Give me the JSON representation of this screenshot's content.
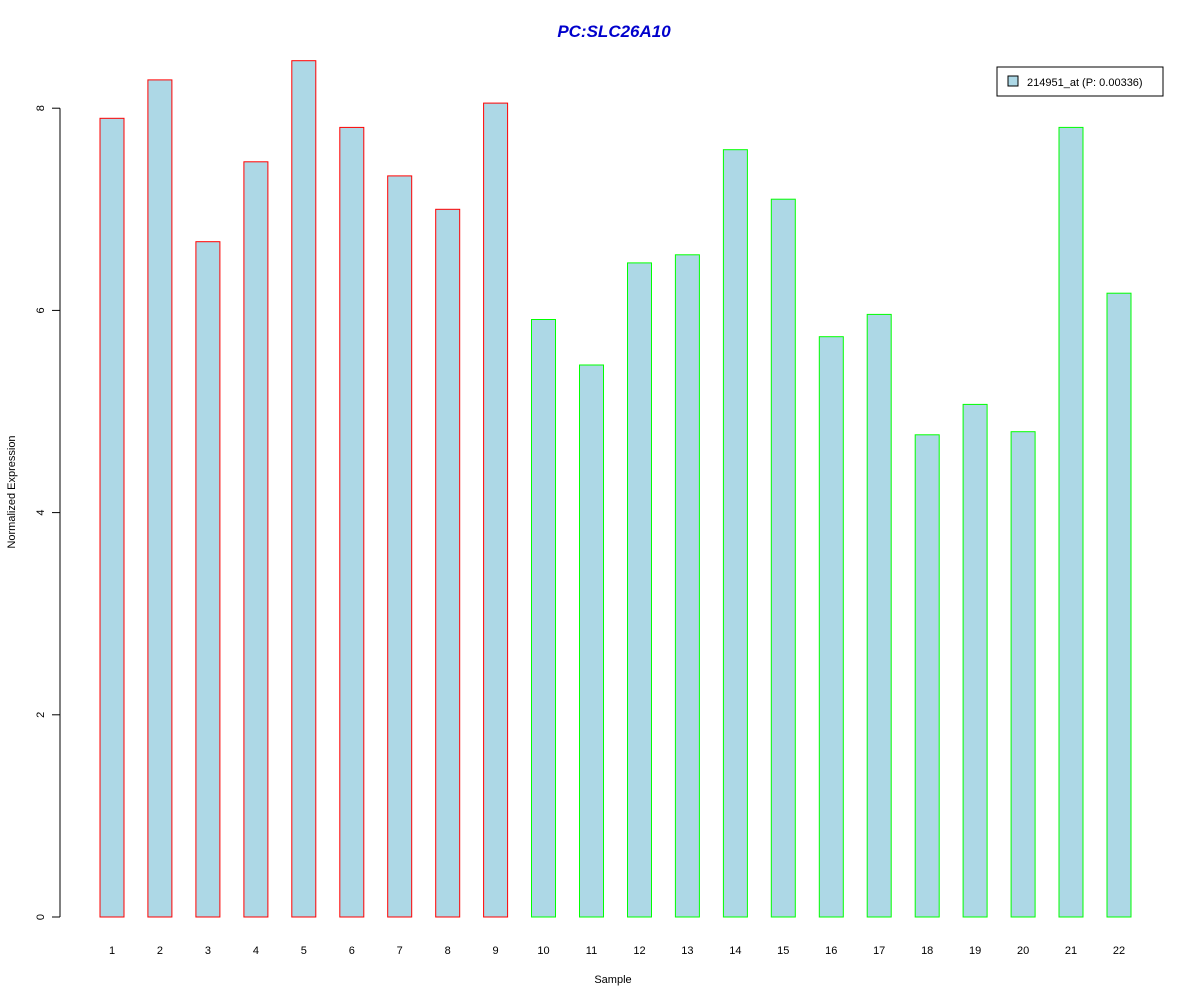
{
  "chart_data": {
    "type": "bar",
    "title": "PC:SLC26A10",
    "title_color": "#0000CC",
    "xlabel": "Sample",
    "ylabel": "Normalized Expression",
    "ylim": [
      0,
      8.4
    ],
    "yticks": [
      0,
      2,
      4,
      6,
      8
    ],
    "grid": false,
    "legend_position": "top-right",
    "fill_color": "#ADD8E6",
    "categories": [
      "1",
      "2",
      "3",
      "4",
      "5",
      "6",
      "7",
      "8",
      "9",
      "10",
      "11",
      "12",
      "13",
      "14",
      "15",
      "16",
      "17",
      "18",
      "19",
      "20",
      "21",
      "22"
    ],
    "series": [
      {
        "name": "214951_at (P: 0.00336)",
        "values": [
          7.9,
          8.28,
          6.68,
          7.47,
          8.47,
          7.81,
          7.33,
          7.0,
          8.05,
          5.91,
          5.46,
          6.47,
          6.55,
          7.59,
          7.1,
          5.74,
          5.96,
          4.77,
          5.07,
          4.8,
          7.81,
          6.17
        ],
        "border_colors": [
          "#FF0000",
          "#FF0000",
          "#FF0000",
          "#FF0000",
          "#FF0000",
          "#FF0000",
          "#FF0000",
          "#FF0000",
          "#FF0000",
          "#00FF00",
          "#00FF00",
          "#00FF00",
          "#00FF00",
          "#00FF00",
          "#00FF00",
          "#00FF00",
          "#00FF00",
          "#00FF00",
          "#00FF00",
          "#00FF00",
          "#00FF00",
          "#00FF00"
        ]
      }
    ]
  }
}
